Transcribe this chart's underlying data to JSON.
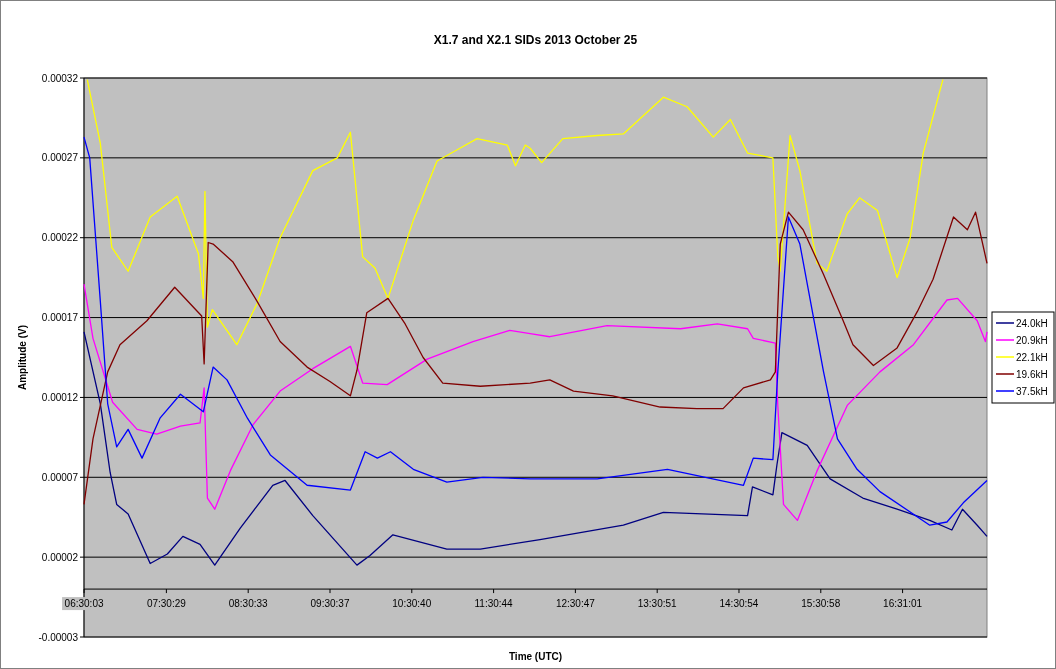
{
  "chart_data": {
    "type": "line",
    "title": "X1.7 and X2.1 SIDs 2013 October 25",
    "xlabel": "Time (UTC)",
    "ylabel": "Amplitude (V)",
    "xlim": [
      6.5,
      17.55
    ],
    "xticks": [
      {
        "value": 6.5008,
        "label": "06:30:03"
      },
      {
        "value": 7.5081,
        "label": "07:30:29"
      },
      {
        "value": 8.5092,
        "label": "08:30:33"
      },
      {
        "value": 9.5103,
        "label": "09:30:37"
      },
      {
        "value": 10.5111,
        "label": "10:30:40"
      },
      {
        "value": 11.5122,
        "label": "11:30:44"
      },
      {
        "value": 12.5131,
        "label": "12:30:47"
      },
      {
        "value": 13.5142,
        "label": "13:30:51"
      },
      {
        "value": 14.515,
        "label": "14:30:54"
      },
      {
        "value": 15.5161,
        "label": "15:30:58"
      },
      {
        "value": 16.517,
        "label": "16:31:01"
      }
    ],
    "ylim": [
      -3e-05,
      0.00032
    ],
    "yticks": [
      {
        "value": -3e-05,
        "label": "-0.00003"
      },
      {
        "value": 2e-05,
        "label": "0.00002"
      },
      {
        "value": 7e-05,
        "label": "0.00007"
      },
      0.00012,
      0.00017,
      0.00022,
      0.00027,
      0.00032
    ],
    "grid": "y",
    "legend": "right",
    "line_style": "solid",
    "marker": "none",
    "series": [
      {
        "name": "24.0kH",
        "color": "#000080",
        "x": [
          6.5,
          6.7,
          6.82,
          6.9,
          7.04,
          7.31,
          7.52,
          7.71,
          7.92,
          8.1,
          8.41,
          8.81,
          8.96,
          9.3,
          9.84,
          10.0,
          10.28,
          10.94,
          11.35,
          12.08,
          13.1,
          13.59,
          14.62,
          14.68,
          14.93,
          14.98,
          15.04,
          15.35,
          15.63,
          16.03,
          16.45,
          16.85,
          17.12,
          17.25,
          17.43,
          17.55
        ],
        "values": [
          0.000161,
          0.000116,
          7.3e-05,
          5.3e-05,
          4.7e-05,
          1.6e-05,
          2.2e-05,
          3.3e-05,
          2.8e-05,
          1.5e-05,
          3.8e-05,
          6.5e-05,
          6.8e-05,
          4.6e-05,
          1.5e-05,
          2.1e-05,
          3.4e-05,
          2.5e-05,
          2.5e-05,
          3.1e-05,
          4e-05,
          4.8e-05,
          4.6e-05,
          6.4e-05,
          5.9e-05,
          7.8e-05,
          9.8e-05,
          9e-05,
          6.9e-05,
          5.7e-05,
          5e-05,
          4.3e-05,
          3.7e-05,
          5e-05,
          4e-05,
          3.3e-05
        ]
      },
      {
        "name": "20.9kH",
        "color": "#ff00ff",
        "x": [
          6.5,
          6.61,
          6.85,
          7.15,
          7.39,
          7.68,
          7.92,
          7.97,
          8.01,
          8.1,
          8.29,
          8.57,
          8.9,
          9.3,
          9.76,
          9.91,
          10.21,
          10.7,
          11.26,
          11.71,
          11.96,
          12.2,
          12.9,
          13.8,
          14.25,
          14.62,
          14.69,
          14.96,
          14.99,
          15.06,
          15.23,
          15.47,
          15.84,
          16.24,
          16.65,
          17.06,
          17.19,
          17.43,
          17.53,
          17.55
        ],
        "values": [
          0.000191,
          0.000157,
          0.000117,
          0.0001,
          9.7e-05,
          0.000102,
          0.000104,
          0.000126,
          5.7e-05,
          5e-05,
          7.4e-05,
          0.000103,
          0.000124,
          0.000138,
          0.000152,
          0.000129,
          0.000128,
          0.000144,
          0.000155,
          0.000162,
          0.00016,
          0.000158,
          0.000165,
          0.000163,
          0.000166,
          0.000163,
          0.000157,
          0.000154,
          0.000115,
          5.3e-05,
          4.3e-05,
          7.4e-05,
          0.000115,
          0.000136,
          0.000153,
          0.000181,
          0.000182,
          0.000168,
          0.000155,
          0.000161
        ]
      },
      {
        "name": "22.1kH",
        "color": "#ffff00",
        "x": [
          6.54,
          6.7,
          6.84,
          7.04,
          7.31,
          7.64,
          7.9,
          7.96,
          7.98,
          8.01,
          8.07,
          8.37,
          8.62,
          8.9,
          9.3,
          9.6,
          9.76,
          9.91,
          10.06,
          10.22,
          10.53,
          10.82,
          11.1,
          11.31,
          11.68,
          11.78,
          11.9,
          11.96,
          12.1,
          12.36,
          12.78,
          13.1,
          13.59,
          13.88,
          14.2,
          14.41,
          14.62,
          14.93,
          14.99,
          15.02,
          15.14,
          15.26,
          15.47,
          15.59,
          15.84,
          15.99,
          16.21,
          16.45,
          16.61,
          16.77,
          17.01
        ],
        "values": [
          0.000319,
          0.000279,
          0.000214,
          0.000199,
          0.000233,
          0.000246,
          0.00021,
          0.000182,
          0.000249,
          0.000164,
          0.000175,
          0.000153,
          0.000179,
          0.00022,
          0.000262,
          0.00027,
          0.000286,
          0.000208,
          0.000201,
          0.000182,
          0.000231,
          0.000268,
          0.000276,
          0.000282,
          0.000278,
          0.000265,
          0.000278,
          0.000276,
          0.000267,
          0.000282,
          0.000284,
          0.000285,
          0.000308,
          0.000302,
          0.000283,
          0.000294,
          0.000273,
          0.00027,
          0.000208,
          0.000199,
          0.000284,
          0.000262,
          0.000204,
          0.000199,
          0.000235,
          0.000245,
          0.000237,
          0.000195,
          0.00022,
          0.000273,
          0.000319
        ]
      },
      {
        "name": "19.6kH",
        "color": "#800000",
        "x": [
          6.5,
          6.61,
          6.79,
          6.94,
          7.27,
          7.61,
          7.94,
          7.97,
          8.02,
          8.08,
          8.32,
          8.62,
          8.9,
          9.23,
          9.51,
          9.76,
          9.84,
          9.96,
          10.22,
          10.43,
          10.65,
          10.89,
          11.35,
          11.96,
          12.2,
          12.49,
          12.97,
          13.55,
          14.0,
          14.32,
          14.57,
          14.9,
          14.96,
          15.02,
          15.12,
          15.3,
          15.55,
          15.79,
          15.91,
          16.16,
          16.45,
          16.7,
          16.89,
          17.14,
          17.31,
          17.41,
          17.55
        ],
        "values": [
          5.3e-05,
          9.4e-05,
          0.000136,
          0.000153,
          0.000168,
          0.000189,
          0.000171,
          0.000141,
          0.000217,
          0.000216,
          0.000205,
          0.00018,
          0.000155,
          0.000139,
          0.00013,
          0.000121,
          0.000137,
          0.000173,
          0.000182,
          0.000166,
          0.000145,
          0.000129,
          0.000127,
          0.000129,
          0.000131,
          0.000124,
          0.000121,
          0.000114,
          0.000113,
          0.000113,
          0.000126,
          0.000131,
          0.000136,
          0.000216,
          0.000236,
          0.000225,
          0.000197,
          0.000168,
          0.000153,
          0.00014,
          0.000151,
          0.000174,
          0.000194,
          0.000233,
          0.000225,
          0.000236,
          0.000204
        ]
      },
      {
        "name": "37.5kH",
        "color": "#0000ff",
        "x": [
          6.5,
          6.57,
          6.7,
          6.79,
          6.9,
          7.04,
          7.21,
          7.43,
          7.68,
          7.96,
          8.08,
          8.25,
          8.5,
          8.78,
          9.23,
          9.76,
          9.94,
          10.09,
          10.25,
          10.53,
          10.94,
          11.38,
          11.96,
          12.78,
          13.64,
          14.57,
          14.69,
          14.93,
          14.99,
          15.12,
          15.26,
          15.55,
          15.72,
          15.96,
          16.24,
          16.85,
          17.06,
          17.26,
          17.55
        ],
        "values": [
          0.000283,
          0.00027,
          0.00018,
          0.000116,
          8.9e-05,
          0.0001,
          8.2e-05,
          0.000107,
          0.000122,
          0.000111,
          0.000139,
          0.000131,
          0.000107,
          8.4e-05,
          6.5e-05,
          6.2e-05,
          8.6e-05,
          8.2e-05,
          8.6e-05,
          7.5e-05,
          6.7e-05,
          7e-05,
          6.9e-05,
          6.9e-05,
          7.5e-05,
          6.5e-05,
          8.2e-05,
          8.1e-05,
          0.000136,
          0.000233,
          0.000216,
          0.000136,
          9.4e-05,
          7.5e-05,
          6.1e-05,
          4e-05,
          4.2e-05,
          5.4e-05,
          6.8e-05
        ]
      }
    ]
  }
}
